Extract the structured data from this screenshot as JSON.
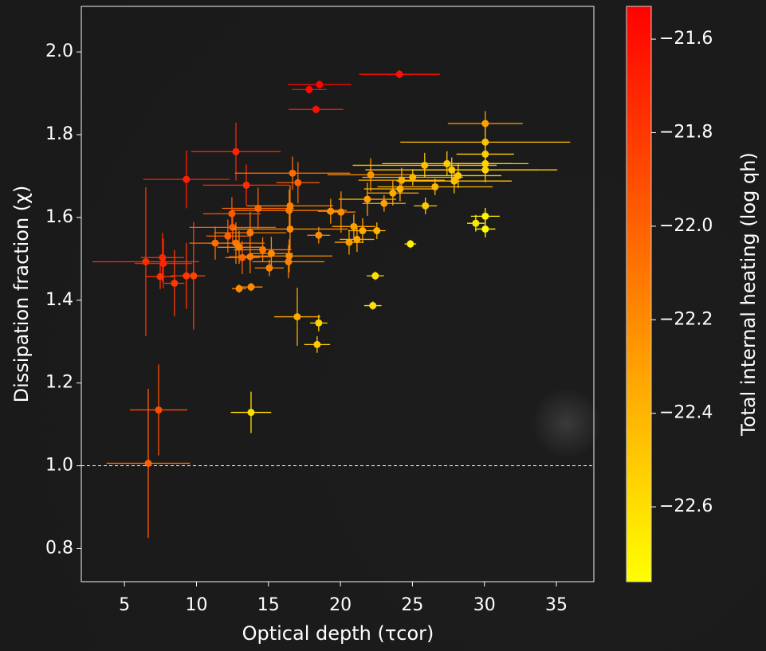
{
  "chart_data": {
    "type": "scatter",
    "x_label": "Optical depth (τcor)",
    "y_label": "Dissipation fraction  (χ)",
    "colorbar_label": "Total internal heating (log qh)",
    "xlim": [
      2,
      37.6
    ],
    "ylim": [
      0.72,
      2.11
    ],
    "xticks": [
      5,
      10,
      15,
      20,
      25,
      30,
      35
    ],
    "yticks": [
      {
        "value": 0.8,
        "label": "0.8"
      },
      {
        "value": 1.0,
        "label": "1.0"
      },
      {
        "value": 1.2,
        "label": "1.2"
      },
      {
        "value": 1.4,
        "label": "1.4"
      },
      {
        "value": 1.6,
        "label": "1.6"
      },
      {
        "value": 1.8,
        "label": "1.8"
      },
      {
        "value": 2.0,
        "label": "2.0"
      }
    ],
    "clim": [
      -22.76,
      -21.53
    ],
    "cticks": [
      {
        "value": -21.6,
        "label": "−21.6"
      },
      {
        "value": -21.8,
        "label": "−21.8"
      },
      {
        "value": -22.0,
        "label": "−22.0"
      },
      {
        "value": -22.2,
        "label": "−22.2"
      },
      {
        "value": -22.4,
        "label": "−22.4"
      },
      {
        "value": -22.6,
        "label": "−22.6"
      }
    ],
    "colormap": [
      "#ffff00",
      "#ff0000"
    ],
    "reference_line": 1.0,
    "x": [
      18.55,
      17.83,
      24.1,
      18.3,
      12.74,
      9.3,
      6.48,
      7.7,
      7.64,
      7.48,
      8.47,
      9.3,
      9.8,
      7.37,
      6.65,
      13.46,
      16.67,
      17.05,
      14.28,
      12.46,
      12.51,
      12.18,
      11.3,
      12.74,
      12.96,
      13.18,
      13.73,
      13.73,
      14.6,
      15.2,
      15.06,
      12.96,
      13.79,
      16.44,
      16.5,
      16.5,
      16.44,
      16.39,
      18.49,
      19.32,
      20.04,
      17.0,
      18.49,
      18.38,
      13.79,
      22.1,
      21.87,
      20.93,
      20.6,
      21.15,
      21.54,
      22.53,
      23.03,
      23.64,
      24.14,
      24.25,
      25.02,
      26.57,
      25.9,
      24.86,
      22.42,
      22.25,
      25.85,
      27.4,
      27.73,
      27.9,
      28.18,
      30.06,
      30.06,
      30.06,
      30.06,
      30.06,
      29.4,
      30.06,
      30.06
    ],
    "values": [
      1.921,
      1.909,
      1.946,
      1.861,
      1.759,
      1.692,
      1.493,
      1.489,
      1.503,
      1.457,
      1.441,
      1.459,
      1.459,
      1.135,
      1.006,
      1.678,
      1.707,
      1.684,
      1.622,
      1.609,
      1.576,
      1.555,
      1.538,
      1.538,
      1.528,
      1.503,
      1.505,
      1.563,
      1.522,
      1.513,
      1.478,
      1.428,
      1.432,
      1.617,
      1.628,
      1.572,
      1.507,
      1.493,
      1.557,
      1.615,
      1.613,
      1.36,
      1.345,
      1.293,
      1.129,
      1.703,
      1.644,
      1.578,
      1.54,
      1.547,
      1.568,
      1.568,
      1.634,
      1.659,
      1.669,
      1.69,
      1.697,
      1.674,
      1.628,
      1.536,
      1.459,
      1.387,
      1.726,
      1.73,
      1.715,
      1.688,
      1.701,
      1.827,
      1.782,
      1.753,
      1.73,
      1.715,
      1.586,
      1.603,
      1.572
    ],
    "xerr": [
      2.2,
      1.2,
      2.8,
      1.9,
      3.1,
      3.0,
      3.7,
      2.0,
      1.5,
      1.0,
      0.7,
      1.1,
      0.8,
      2.0,
      2.9,
      3.0,
      4.0,
      1.5,
      2.5,
      2.0,
      3.0,
      1.5,
      1.8,
      2.0,
      1.5,
      1.2,
      1.5,
      2.5,
      2.0,
      1.5,
      1.0,
      0.5,
      0.8,
      4.0,
      3.0,
      4.0,
      3.0,
      2.5,
      0.8,
      0.9,
      1.0,
      1.6,
      0.6,
      0.9,
      1.4,
      3.0,
      2.0,
      1.5,
      1.0,
      1.2,
      1.0,
      0.6,
      1.5,
      1.8,
      2.5,
      3.0,
      3.5,
      4.0,
      0.8,
      0.4,
      0.6,
      0.6,
      5.0,
      4.5,
      6.0,
      4.0,
      3.0,
      2.6,
      5.9,
      2.0,
      3.0,
      5.0,
      0.6,
      1.0,
      0.7
    ],
    "yerr": [
      0.01,
      0.01,
      0.01,
      0.01,
      0.07,
      0.07,
      0.18,
      0.06,
      0.06,
      0.03,
      0.08,
      0.08,
      0.13,
      0.11,
      0.18,
      0.05,
      0.04,
      0.05,
      0.05,
      0.04,
      0.04,
      0.04,
      0.04,
      0.05,
      0.04,
      0.04,
      0.04,
      0.05,
      0.03,
      0.04,
      0.02,
      0.01,
      0.01,
      0.05,
      0.05,
      0.05,
      0.04,
      0.04,
      0.02,
      0.03,
      0.05,
      0.07,
      0.02,
      0.02,
      0.05,
      0.04,
      0.04,
      0.03,
      0.03,
      0.03,
      0.03,
      0.02,
      0.02,
      0.03,
      0.03,
      0.03,
      0.02,
      0.02,
      0.02,
      0.01,
      0.01,
      0.01,
      0.03,
      0.03,
      0.03,
      0.03,
      0.03,
      0.03,
      0.04,
      0.03,
      0.03,
      0.03,
      0.02,
      0.02,
      0.02
    ],
    "heating": [
      -21.55,
      -21.57,
      -21.6,
      -21.6,
      -21.7,
      -21.68,
      -21.75,
      -21.7,
      -21.72,
      -21.75,
      -21.8,
      -21.78,
      -21.85,
      -21.9,
      -22.0,
      -21.75,
      -22.05,
      -22.0,
      -22.0,
      -21.95,
      -21.95,
      -22.0,
      -22.05,
      -22.1,
      -22.15,
      -22.0,
      -22.1,
      -22.1,
      -22.1,
      -22.2,
      -22.15,
      -22.2,
      -22.2,
      -22.1,
      -22.15,
      -22.2,
      -22.2,
      -22.15,
      -22.2,
      -22.25,
      -22.2,
      -22.35,
      -22.55,
      -22.5,
      -22.6,
      -22.25,
      -22.3,
      -22.3,
      -22.3,
      -22.35,
      -22.35,
      -22.4,
      -22.3,
      -22.35,
      -22.4,
      -22.35,
      -22.4,
      -22.4,
      -22.5,
      -22.7,
      -22.6,
      -22.6,
      -22.45,
      -22.5,
      -22.5,
      -22.45,
      -22.5,
      -22.3,
      -22.45,
      -22.5,
      -22.55,
      -22.55,
      -22.65,
      -22.7,
      -22.75
    ]
  }
}
